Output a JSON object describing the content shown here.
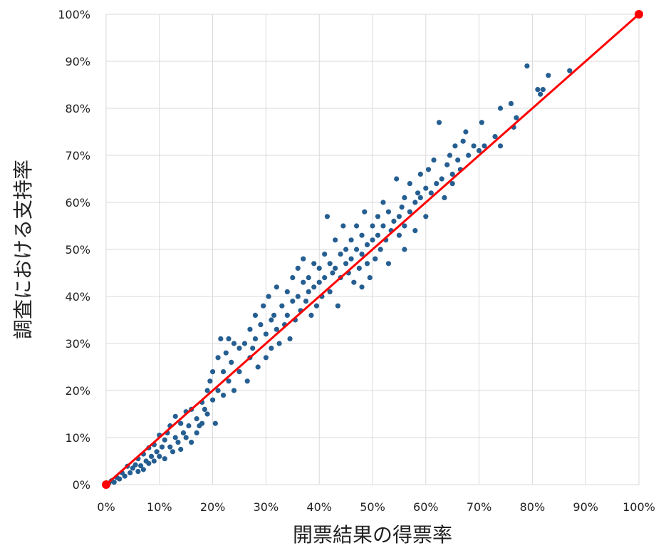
{
  "chart_data": {
    "type": "scatter",
    "x_label": "開票結果の得票率",
    "y_label": "調査における支持率",
    "xlim": [
      0,
      100
    ],
    "ylim": [
      0,
      100
    ],
    "xticks": [
      {
        "value": 0,
        "label": "0%"
      },
      {
        "value": 10,
        "label": "10%"
      },
      {
        "value": 20,
        "label": "20%"
      },
      {
        "value": 30,
        "label": "30%"
      },
      {
        "value": 40,
        "label": "40%"
      },
      {
        "value": 50,
        "label": "50%"
      },
      {
        "value": 60,
        "label": "60%"
      },
      {
        "value": 70,
        "label": "70%"
      },
      {
        "value": 80,
        "label": "80%"
      },
      {
        "value": 90,
        "label": "90%"
      },
      {
        "value": 100,
        "label": "100%"
      }
    ],
    "yticks": [
      {
        "value": 0,
        "label": "0%"
      },
      {
        "value": 10,
        "label": "10%"
      },
      {
        "value": 20,
        "label": "20%"
      },
      {
        "value": 30,
        "label": "30%"
      },
      {
        "value": 40,
        "label": "40%"
      },
      {
        "value": 50,
        "label": "50%"
      },
      {
        "value": 60,
        "label": "60%"
      },
      {
        "value": 70,
        "label": "70%"
      },
      {
        "value": 80,
        "label": "80%"
      },
      {
        "value": 90,
        "label": "90%"
      },
      {
        "value": 100,
        "label": "100%"
      }
    ],
    "grid": true,
    "points": {
      "color": "#255e91",
      "x": [
        0.5,
        1,
        1.5,
        2,
        2.5,
        3,
        3.5,
        4,
        4.5,
        5,
        5.5,
        6,
        6,
        6.5,
        7,
        7,
        7.5,
        8,
        8,
        8.5,
        9,
        9,
        9.5,
        10,
        10,
        10.5,
        11,
        11,
        11.5,
        12,
        12,
        12.5,
        13,
        13,
        13.5,
        14,
        14,
        14.5,
        15,
        15,
        15.5,
        16,
        16,
        17,
        17,
        17.5,
        18,
        18,
        18.5,
        19,
        19,
        19.5,
        20,
        20,
        20.5,
        21,
        21,
        21.5,
        22,
        22,
        22.5,
        23,
        23,
        23.5,
        24,
        24,
        25,
        25,
        26,
        26.5,
        27,
        27,
        27.5,
        28,
        28,
        28.5,
        29,
        29.5,
        30,
        30,
        30.5,
        31,
        31,
        31.5,
        32,
        32,
        32.5,
        33,
        33.5,
        34,
        34,
        34.5,
        35,
        35,
        35.5,
        36,
        36,
        36.5,
        37,
        37,
        37.5,
        38,
        38,
        38.5,
        39,
        39,
        39.5,
        40,
        40,
        40.5,
        41,
        41,
        41.5,
        42,
        42,
        42.5,
        43,
        43,
        43.5,
        44,
        44,
        44.5,
        45,
        45,
        45.5,
        46,
        46,
        46.5,
        47,
        47,
        47.5,
        48,
        48,
        48.5,
        49,
        49,
        49.5,
        50,
        50,
        50.5,
        51,
        51,
        51.5,
        52,
        52,
        52.5,
        53,
        53,
        53.5,
        54,
        54.5,
        55,
        55,
        55.5,
        56,
        56,
        57,
        57,
        58,
        58,
        58.5,
        59,
        59,
        60,
        60,
        60.5,
        61,
        61.5,
        62,
        62.5,
        63,
        63.5,
        64,
        64.5,
        65,
        65.5,
        66,
        66.5,
        67,
        67.5,
        68,
        69,
        70,
        70.5,
        71,
        73,
        74,
        74,
        76,
        77,
        79,
        81,
        81.5,
        82,
        83,
        87,
        76.5,
        65,
        56,
        48
      ],
      "y": [
        0.3,
        0.8,
        0.5,
        1.5,
        1.2,
        2.5,
        1.8,
        3.9,
        2.5,
        3.5,
        4.2,
        2.8,
        5.5,
        4,
        6.5,
        3.2,
        5,
        7.8,
        4.5,
        6,
        8.5,
        5,
        7,
        10.5,
        6,
        8,
        9.5,
        5.5,
        11,
        8,
        12.5,
        7,
        10,
        14.5,
        9,
        13,
        7.5,
        11,
        15.5,
        10,
        12.5,
        9,
        16,
        14,
        11,
        12.5,
        17.5,
        13,
        16,
        20,
        15,
        22,
        18,
        24,
        13,
        27,
        20,
        31,
        24,
        19,
        28,
        31,
        22,
        26,
        30,
        20,
        29,
        24,
        30,
        22,
        33,
        27,
        29,
        36,
        31,
        25,
        34,
        38,
        32,
        27,
        40,
        35,
        29,
        36,
        42,
        33,
        30,
        38,
        34,
        41,
        36,
        31,
        44,
        39,
        35,
        46,
        40,
        37,
        43,
        48,
        39,
        44,
        41,
        36,
        47,
        42,
        38,
        46,
        43,
        40,
        49,
        44,
        57,
        47,
        41,
        45,
        52,
        46,
        38,
        49,
        44,
        55,
        47,
        50,
        45,
        52,
        48,
        43,
        55,
        50,
        46,
        53,
        49,
        58,
        51,
        47,
        44,
        55,
        52,
        48,
        57,
        53,
        50,
        60,
        55,
        52,
        58,
        47,
        54,
        56,
        65,
        57,
        53,
        59,
        61,
        55,
        58,
        64,
        60,
        54,
        62,
        66,
        61,
        63,
        57,
        67,
        62,
        69,
        64,
        77,
        65,
        61,
        68,
        70,
        66,
        72,
        69,
        67,
        73,
        75,
        70,
        72,
        71,
        77,
        72,
        74,
        72,
        80,
        81,
        78,
        89,
        84,
        83,
        84,
        87,
        88,
        76,
        64,
        50,
        42
      ]
    },
    "reference_line": {
      "color": "#ff0000",
      "x": [
        0,
        100
      ],
      "y": [
        0,
        100
      ]
    }
  }
}
